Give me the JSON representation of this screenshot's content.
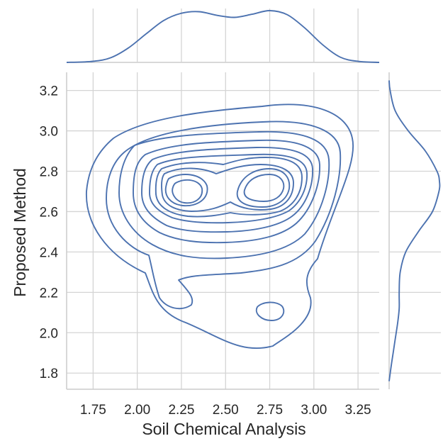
{
  "chart_data": {
    "type": "kde_joint",
    "xlabel": "Soil Chemical Analysis",
    "ylabel": "Proposed Method",
    "xlim": [
      1.6,
      3.37
    ],
    "ylim": [
      1.72,
      3.29
    ],
    "x_ticks": [
      1.75,
      2.0,
      2.25,
      2.5,
      2.75,
      3.0,
      3.25
    ],
    "x_tick_labels": [
      "1.75",
      "2.00",
      "2.25",
      "2.50",
      "2.75",
      "3.00",
      "3.25"
    ],
    "y_ticks": [
      1.8,
      2.0,
      2.2,
      2.4,
      2.6,
      2.8,
      3.0,
      3.2
    ],
    "y_tick_labels": [
      "1.8",
      "2.0",
      "2.2",
      "2.4",
      "2.6",
      "2.8",
      "3.0",
      "3.2"
    ],
    "grid": true,
    "color": "#4c72b0",
    "contour_levels": 10,
    "density_modes": [
      {
        "x": 2.28,
        "y": 2.72
      },
      {
        "x": 2.8,
        "y": 2.73
      },
      {
        "x": 2.78,
        "y": 2.1
      }
    ],
    "marginal_x": {
      "x": [
        1.6,
        1.75,
        1.85,
        1.95,
        2.05,
        2.15,
        2.25,
        2.35,
        2.45,
        2.55,
        2.65,
        2.75,
        2.85,
        2.95,
        3.05,
        3.15,
        3.25,
        3.37
      ],
      "density": [
        0.0,
        0.02,
        0.09,
        0.28,
        0.55,
        0.81,
        0.95,
        0.98,
        0.91,
        0.87,
        0.93,
        1.0,
        0.92,
        0.66,
        0.34,
        0.1,
        0.02,
        0.0
      ]
    },
    "marginal_y": {
      "y": [
        1.76,
        1.85,
        1.95,
        2.05,
        2.12,
        2.2,
        2.3,
        2.4,
        2.5,
        2.6,
        2.7,
        2.75,
        2.8,
        2.9,
        3.0,
        3.1,
        3.2,
        3.25
      ],
      "density": [
        0.0,
        0.05,
        0.11,
        0.17,
        0.2,
        0.2,
        0.22,
        0.33,
        0.58,
        0.86,
        0.99,
        1.0,
        0.95,
        0.72,
        0.38,
        0.12,
        0.02,
        0.0
      ]
    }
  }
}
